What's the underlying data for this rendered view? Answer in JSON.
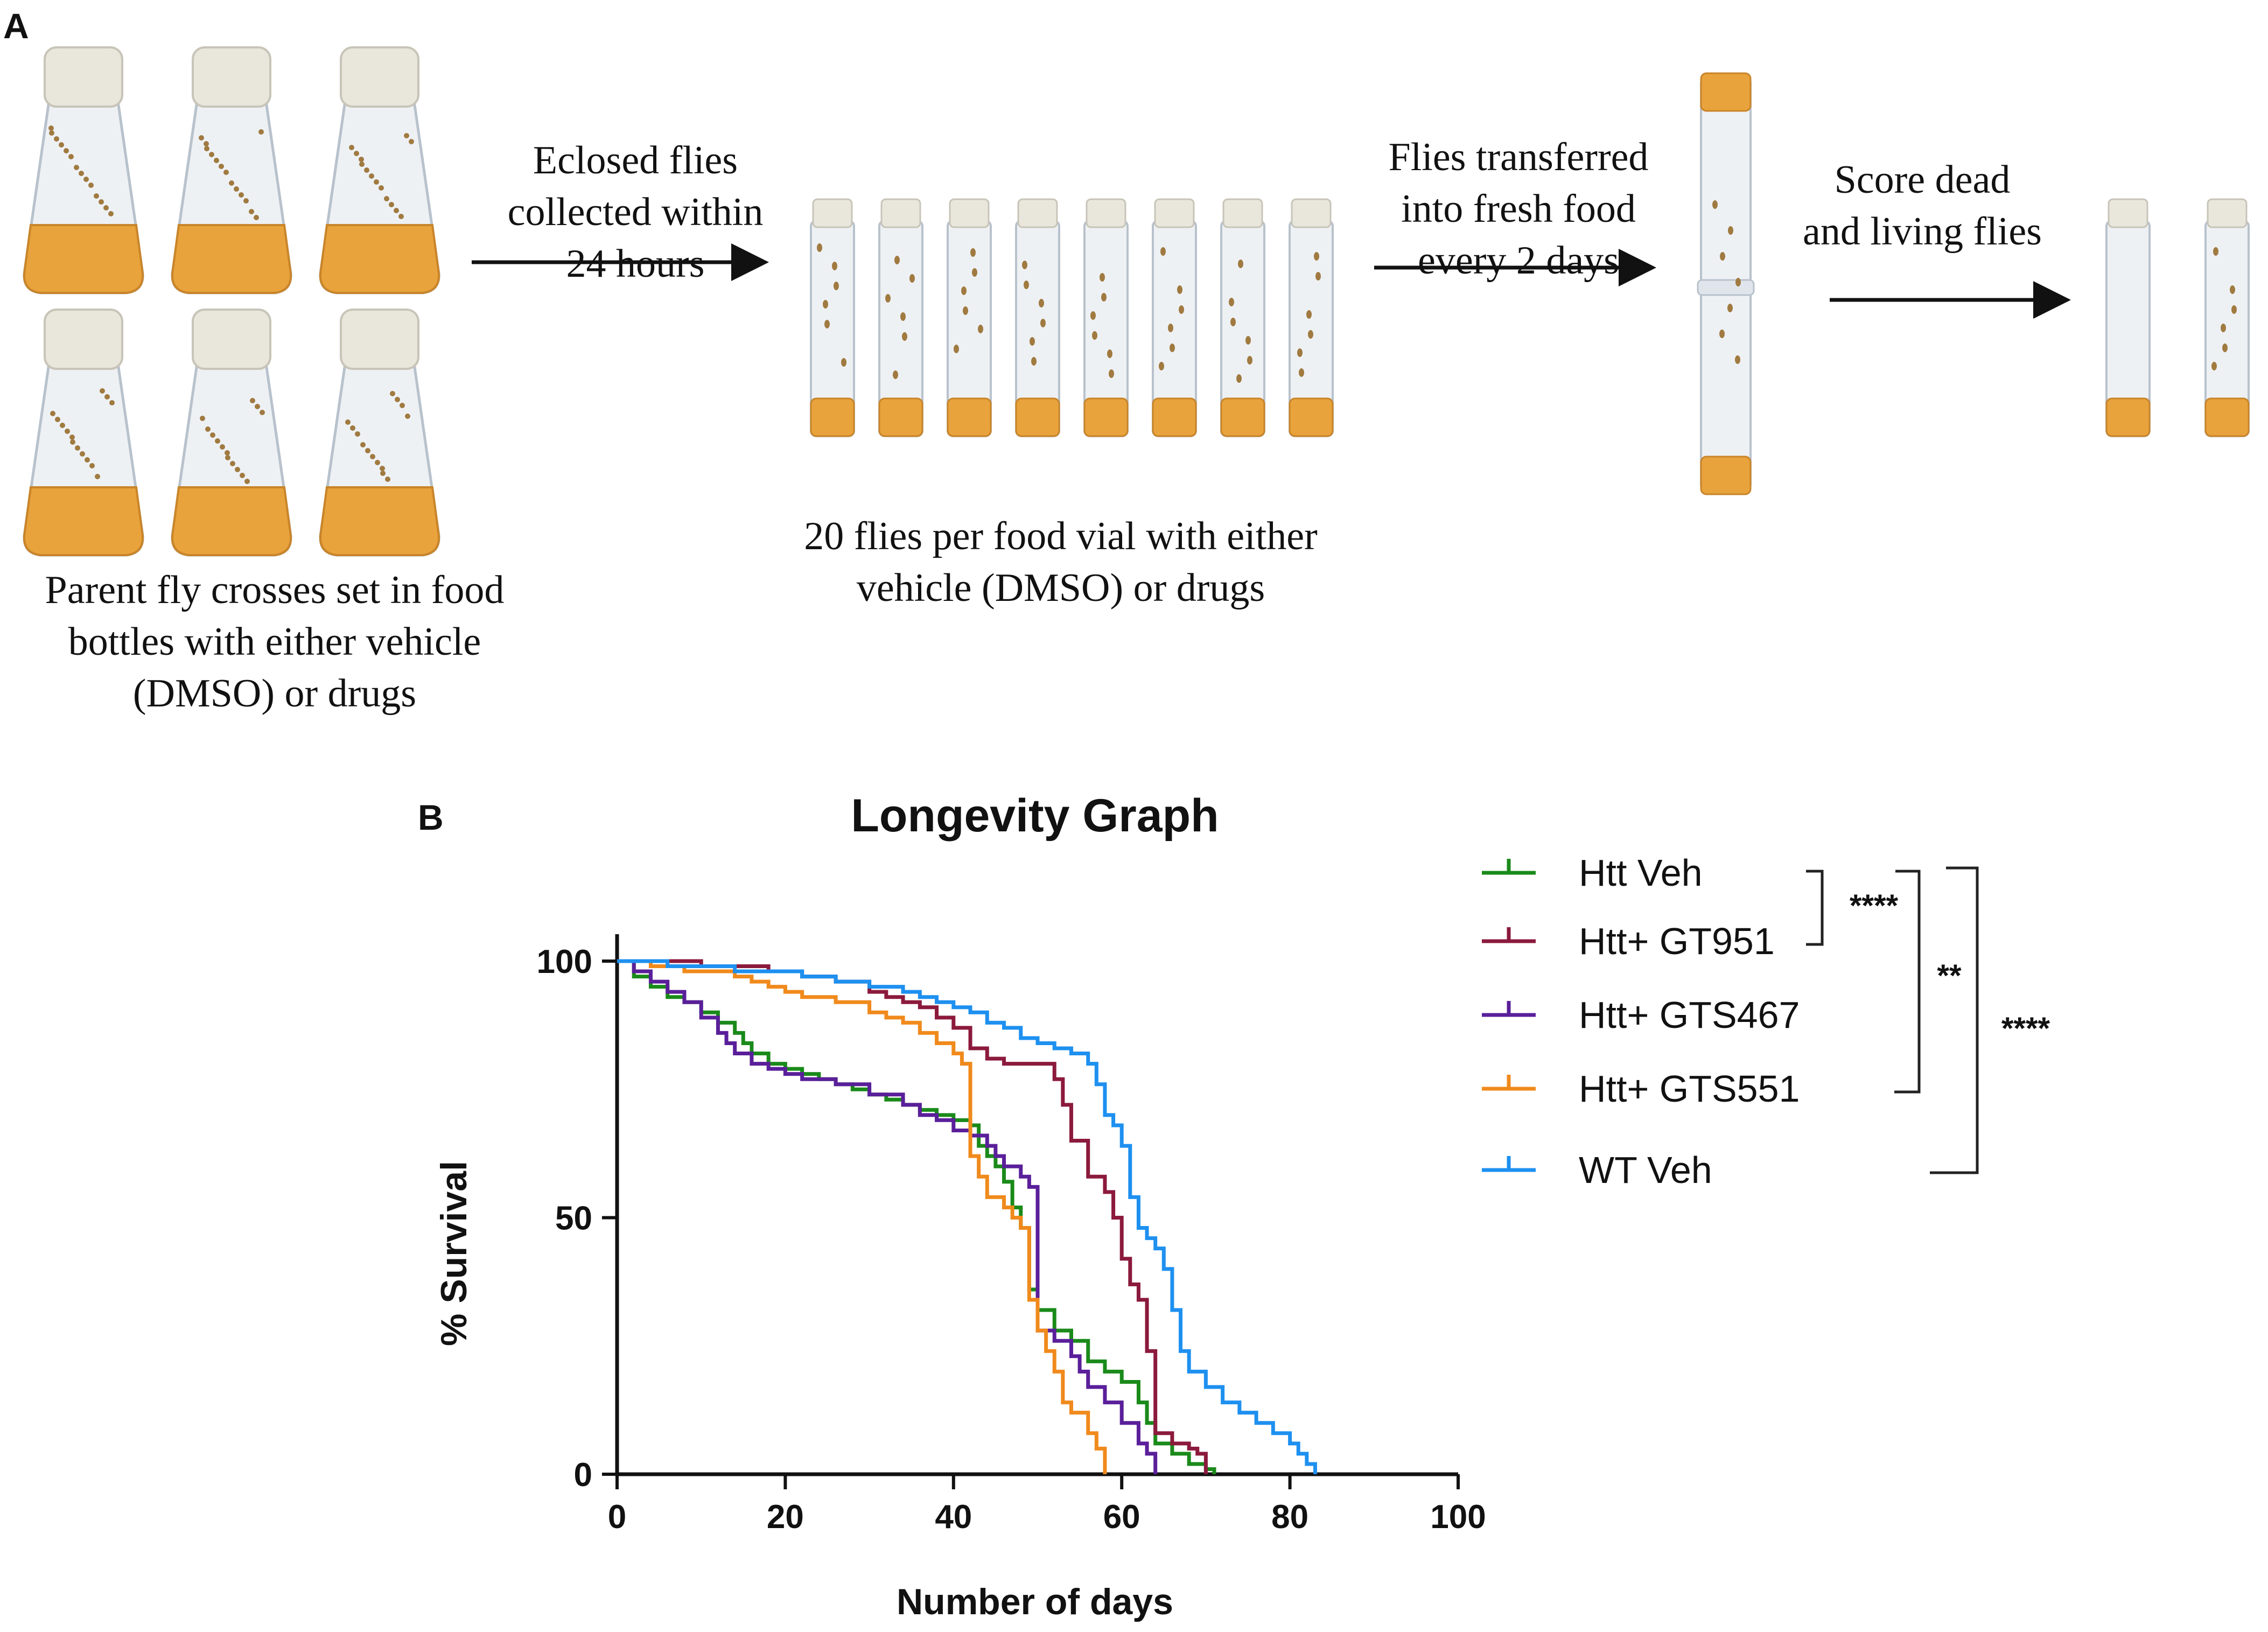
{
  "panel_a": {
    "label": "A",
    "step1_caption": [
      "Parent fly crosses set in food",
      "bottles with either vehicle",
      "(DMSO) or drugs"
    ],
    "arrow1_label": [
      "Eclosed flies",
      "collected within",
      "24 hours"
    ],
    "step2_caption": [
      "20 flies per food vial with either",
      "vehicle (DMSO) or drugs"
    ],
    "arrow2_label": [
      "Flies transferred",
      "into fresh food",
      "every 2 days"
    ],
    "arrow3_label": [
      "Score dead",
      "and living flies"
    ],
    "colors": {
      "food": "#e8a33c",
      "cap": "#e9e6dc",
      "glass": "#eef1f4"
    }
  },
  "panel_b": {
    "label": "B",
    "significance": {
      "bracket1": "****",
      "bracket2": "**",
      "bracket3": "****"
    }
  },
  "chart_data": {
    "type": "line",
    "title": "Longevity Graph",
    "xlabel": "Number of days",
    "ylabel": "% Survival",
    "xlim": [
      0,
      100
    ],
    "ylim": [
      0,
      100
    ],
    "xticks": [
      0,
      20,
      40,
      60,
      80,
      100
    ],
    "yticks": [
      0,
      50,
      100
    ],
    "legend_position": "right",
    "step": true,
    "series": [
      {
        "name": "Htt Veh",
        "color": "#1a8a1a",
        "points": [
          [
            0,
            100
          ],
          [
            2,
            97
          ],
          [
            4,
            95
          ],
          [
            6,
            93
          ],
          [
            8,
            92
          ],
          [
            10,
            90
          ],
          [
            12,
            88
          ],
          [
            14,
            86
          ],
          [
            15,
            84
          ],
          [
            16,
            82
          ],
          [
            18,
            80
          ],
          [
            20,
            79
          ],
          [
            22,
            78
          ],
          [
            24,
            77
          ],
          [
            26,
            76
          ],
          [
            28,
            75
          ],
          [
            30,
            74
          ],
          [
            32,
            73
          ],
          [
            34,
            72
          ],
          [
            36,
            71
          ],
          [
            38,
            70
          ],
          [
            40,
            69
          ],
          [
            42,
            68
          ],
          [
            43,
            64
          ],
          [
            44,
            62
          ],
          [
            45,
            60
          ],
          [
            46,
            57
          ],
          [
            47,
            52
          ],
          [
            48,
            48
          ],
          [
            49,
            36
          ],
          [
            50,
            32
          ],
          [
            52,
            28
          ],
          [
            54,
            26
          ],
          [
            56,
            22
          ],
          [
            58,
            20
          ],
          [
            60,
            18
          ],
          [
            62,
            14
          ],
          [
            63,
            10
          ],
          [
            64,
            6
          ],
          [
            66,
            4
          ],
          [
            68,
            2
          ],
          [
            70,
            1
          ],
          [
            71,
            0
          ]
        ]
      },
      {
        "name": "Htt+ GT951",
        "color": "#8b1a3c",
        "points": [
          [
            0,
            100
          ],
          [
            6,
            100
          ],
          [
            10,
            99
          ],
          [
            14,
            99
          ],
          [
            18,
            98
          ],
          [
            22,
            97
          ],
          [
            26,
            96
          ],
          [
            30,
            94
          ],
          [
            32,
            93
          ],
          [
            34,
            92
          ],
          [
            36,
            91
          ],
          [
            38,
            89
          ],
          [
            40,
            87
          ],
          [
            42,
            83
          ],
          [
            44,
            81
          ],
          [
            46,
            80
          ],
          [
            50,
            80
          ],
          [
            52,
            77
          ],
          [
            53,
            72
          ],
          [
            54,
            65
          ],
          [
            56,
            58
          ],
          [
            58,
            55
          ],
          [
            59,
            50
          ],
          [
            60,
            42
          ],
          [
            61,
            37
          ],
          [
            62,
            34
          ],
          [
            63,
            24
          ],
          [
            64,
            8
          ],
          [
            66,
            6
          ],
          [
            68,
            5
          ],
          [
            69,
            4
          ],
          [
            70,
            0
          ]
        ]
      },
      {
        "name": "Htt+ GTS467",
        "color": "#5a1f9a",
        "points": [
          [
            0,
            100
          ],
          [
            2,
            98
          ],
          [
            4,
            96
          ],
          [
            6,
            94
          ],
          [
            8,
            92
          ],
          [
            10,
            89
          ],
          [
            12,
            86
          ],
          [
            13,
            84
          ],
          [
            14,
            82
          ],
          [
            16,
            80
          ],
          [
            18,
            79
          ],
          [
            20,
            78
          ],
          [
            22,
            77
          ],
          [
            26,
            76
          ],
          [
            30,
            74
          ],
          [
            34,
            72
          ],
          [
            36,
            70
          ],
          [
            38,
            69
          ],
          [
            40,
            67
          ],
          [
            42,
            66
          ],
          [
            44,
            64
          ],
          [
            45,
            62
          ],
          [
            46,
            60
          ],
          [
            48,
            58
          ],
          [
            49,
            56
          ],
          [
            50,
            28
          ],
          [
            52,
            26
          ],
          [
            54,
            23
          ],
          [
            55,
            20
          ],
          [
            56,
            17
          ],
          [
            58,
            14
          ],
          [
            60,
            10
          ],
          [
            62,
            6
          ],
          [
            63,
            4
          ],
          [
            64,
            0
          ]
        ]
      },
      {
        "name": "Htt+ GTS551",
        "color": "#f08a1c",
        "points": [
          [
            0,
            100
          ],
          [
            4,
            99
          ],
          [
            8,
            98
          ],
          [
            12,
            98
          ],
          [
            14,
            97
          ],
          [
            16,
            96
          ],
          [
            18,
            95
          ],
          [
            20,
            94
          ],
          [
            22,
            93
          ],
          [
            26,
            92
          ],
          [
            30,
            90
          ],
          [
            32,
            89
          ],
          [
            34,
            88
          ],
          [
            36,
            86
          ],
          [
            38,
            84
          ],
          [
            40,
            82
          ],
          [
            41,
            80
          ],
          [
            42,
            62
          ],
          [
            43,
            58
          ],
          [
            44,
            54
          ],
          [
            46,
            52
          ],
          [
            47,
            50
          ],
          [
            48,
            48
          ],
          [
            49,
            34
          ],
          [
            50,
            28
          ],
          [
            51,
            24
          ],
          [
            52,
            20
          ],
          [
            53,
            14
          ],
          [
            54,
            12
          ],
          [
            56,
            8
          ],
          [
            57,
            5
          ],
          [
            58,
            0
          ]
        ]
      },
      {
        "name": "WT Veh",
        "color": "#1e90f0",
        "points": [
          [
            0,
            100
          ],
          [
            6,
            99
          ],
          [
            10,
            99
          ],
          [
            14,
            98
          ],
          [
            18,
            98
          ],
          [
            22,
            97
          ],
          [
            26,
            96
          ],
          [
            30,
            95
          ],
          [
            34,
            94
          ],
          [
            36,
            93
          ],
          [
            38,
            92
          ],
          [
            40,
            91
          ],
          [
            42,
            90
          ],
          [
            44,
            88
          ],
          [
            46,
            87
          ],
          [
            48,
            85
          ],
          [
            50,
            84
          ],
          [
            52,
            83
          ],
          [
            54,
            82
          ],
          [
            56,
            80
          ],
          [
            57,
            76
          ],
          [
            58,
            70
          ],
          [
            59,
            68
          ],
          [
            60,
            64
          ],
          [
            61,
            54
          ],
          [
            62,
            48
          ],
          [
            63,
            46
          ],
          [
            64,
            44
          ],
          [
            65,
            40
          ],
          [
            66,
            32
          ],
          [
            67,
            24
          ],
          [
            68,
            20
          ],
          [
            70,
            17
          ],
          [
            72,
            14
          ],
          [
            74,
            12
          ],
          [
            76,
            10
          ],
          [
            78,
            8
          ],
          [
            80,
            6
          ],
          [
            81,
            4
          ],
          [
            82,
            2
          ],
          [
            83,
            0
          ]
        ]
      }
    ]
  }
}
